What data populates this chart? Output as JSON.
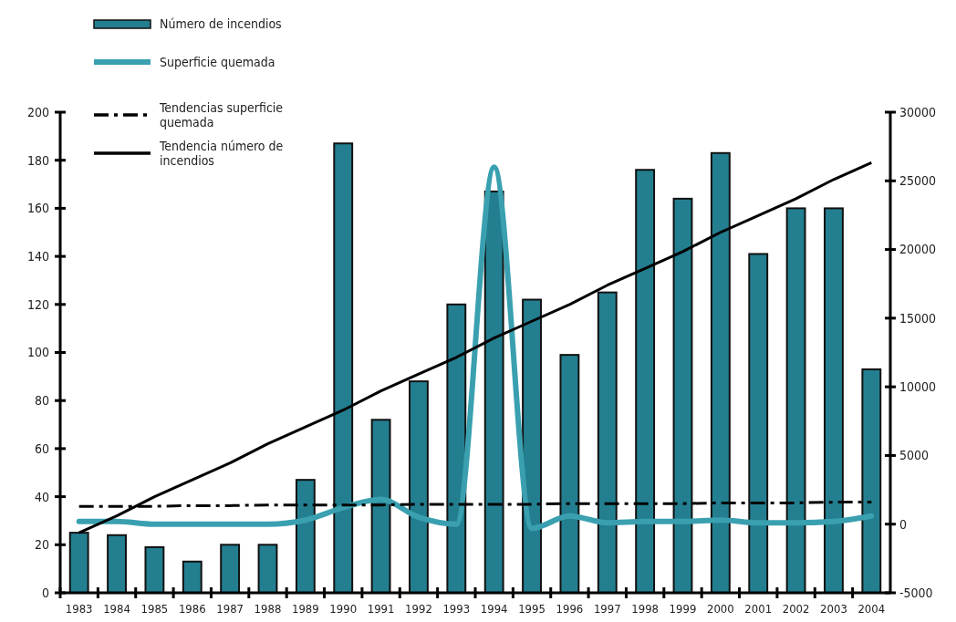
{
  "chart_data": {
    "type": "bar",
    "categories": [
      "1983",
      "1984",
      "1985",
      "1986",
      "1987",
      "1988",
      "1989",
      "1990",
      "1991",
      "1992",
      "1993",
      "1994",
      "1995",
      "1996",
      "1997",
      "1998",
      "1999",
      "2000",
      "2001",
      "2002",
      "2003",
      "2004"
    ],
    "series": [
      {
        "name": "Número de incendios",
        "color": "#237f90",
        "values": [
          25,
          24,
          19,
          13,
          20,
          20,
          47,
          187,
          72,
          88,
          120,
          167,
          122,
          99,
          125,
          176,
          164,
          183,
          141,
          160,
          160,
          93
        ]
      },
      {
        "name": "Superficie quemada",
        "type": "line",
        "axis": "y2",
        "color": "#3aa0b0",
        "values": [
          200,
          200,
          0,
          0,
          0,
          0,
          300,
          1200,
          1800,
          500,
          0,
          26000,
          -300,
          600,
          100,
          200,
          200,
          300,
          100,
          100,
          200,
          600
        ]
      },
      {
        "name": "Tendencias superficie quemada",
        "type": "line",
        "axis": "y2",
        "color": "#000000",
        "line_style": "dashed",
        "values": [
          1300,
          1300,
          1300,
          1350,
          1350,
          1400,
          1400,
          1400,
          1400,
          1450,
          1450,
          1450,
          1450,
          1500,
          1500,
          1500,
          1500,
          1550,
          1550,
          1550,
          1600,
          1600
        ]
      },
      {
        "name": "Tendencia número de incendios",
        "type": "line",
        "color": "#000000",
        "line_style": "solid",
        "values": [
          25,
          32,
          40,
          47,
          54,
          62,
          69,
          76,
          84,
          91,
          98,
          106,
          113,
          120,
          128,
          135,
          142,
          150,
          157,
          164,
          172,
          179
        ]
      }
    ],
    "ylim": [
      0,
      200
    ],
    "yticks": [
      0,
      20,
      40,
      60,
      80,
      100,
      120,
      140,
      160,
      180,
      200
    ],
    "y2lim": [
      -5000,
      30000
    ],
    "y2ticks": [
      -5000,
      0,
      5000,
      10000,
      15000,
      20000,
      25000,
      30000
    ],
    "legend": "top left",
    "grid": false
  }
}
